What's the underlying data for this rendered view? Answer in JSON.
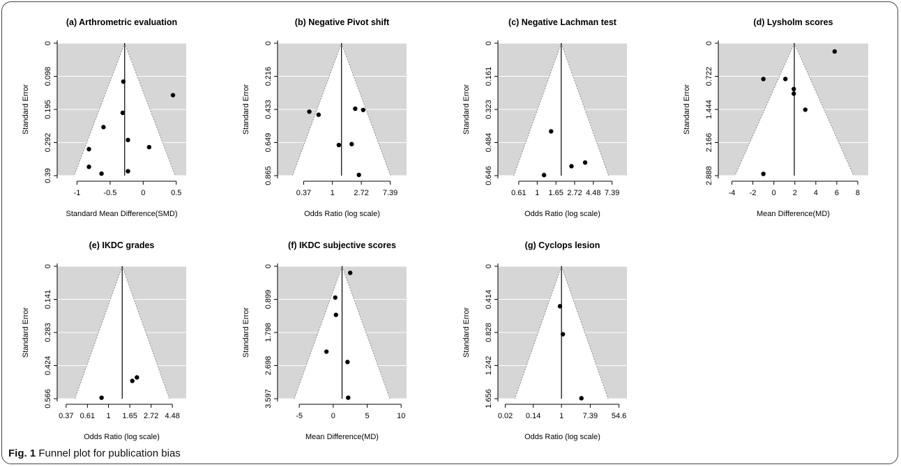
{
  "caption": {
    "label": "Fig. 1",
    "text": "Funnel plot for publication bias"
  },
  "chart_data": [
    {
      "type": "scatter",
      "subtype": "funnel",
      "scale": "linear",
      "title": "(a) Arthrometric evaluation",
      "xlabel": "Standard Mean Difference(SMD)",
      "ylabel": "Standard Error",
      "xlim": [
        -1.3,
        0.65
      ],
      "ylim": [
        0.39,
        0
      ],
      "xticks": [
        {
          "v": -1,
          "label": "-1"
        },
        {
          "v": -0.5,
          "label": "-0.5"
        },
        {
          "v": 0,
          "label": "0"
        },
        {
          "v": 0.5,
          "label": "0.5"
        }
      ],
      "yticks": [
        "0",
        "0.098",
        "0.195",
        "0.292",
        "0.39"
      ],
      "summary": -0.28,
      "max_se": 0.39,
      "points": [
        {
          "x": -0.3,
          "y": 0.113
        },
        {
          "x": 0.45,
          "y": 0.153
        },
        {
          "x": -0.31,
          "y": 0.205
        },
        {
          "x": -0.6,
          "y": 0.247
        },
        {
          "x": -0.23,
          "y": 0.285
        },
        {
          "x": 0.09,
          "y": 0.306
        },
        {
          "x": -0.82,
          "y": 0.312
        },
        {
          "x": -0.82,
          "y": 0.364
        },
        {
          "x": -0.23,
          "y": 0.377
        },
        {
          "x": -0.63,
          "y": 0.384
        }
      ]
    },
    {
      "type": "scatter",
      "subtype": "funnel",
      "scale": "log",
      "title": "(b) Negative Pivot shift",
      "xlabel": "Odds Ratio (log scale)",
      "ylabel": "Standard Error",
      "xlim": [
        0.15,
        13
      ],
      "ylim": [
        0.865,
        0
      ],
      "xticks": [
        {
          "v": 0.37,
          "label": "0.37"
        },
        {
          "v": 1,
          "label": "1"
        },
        {
          "v": 2.72,
          "label": "2.72"
        },
        {
          "v": 7.39,
          "label": "7.39"
        }
      ],
      "yticks": [
        "0",
        "0.216",
        "0.433",
        "0.649",
        "0.865"
      ],
      "summary": 1.37,
      "max_se": 0.865,
      "points": [
        {
          "x": 2.2,
          "y": 0.428
        },
        {
          "x": 2.9,
          "y": 0.436
        },
        {
          "x": 0.45,
          "y": 0.447
        },
        {
          "x": 0.62,
          "y": 0.467
        },
        {
          "x": 1.95,
          "y": 0.659
        },
        {
          "x": 1.25,
          "y": 0.665
        },
        {
          "x": 2.5,
          "y": 0.86
        }
      ]
    },
    {
      "type": "scatter",
      "subtype": "funnel",
      "scale": "log",
      "title": "(c) Negative Lachman test",
      "xlabel": "Odds Ratio (log scale)",
      "ylabel": "Standard Error",
      "xlim": [
        0.35,
        11
      ],
      "ylim": [
        0.646,
        0
      ],
      "xticks": [
        {
          "v": 0.61,
          "label": "0.61"
        },
        {
          "v": 1,
          "label": "1"
        },
        {
          "v": 1.65,
          "label": "1.65"
        },
        {
          "v": 2.72,
          "label": "2.72"
        },
        {
          "v": 4.48,
          "label": "4.48"
        },
        {
          "v": 7.39,
          "label": "7.39"
        }
      ],
      "yticks": [
        "0",
        "0.161",
        "0.323",
        "0.484",
        "0.646"
      ],
      "summary": 1.9,
      "max_se": 0.646,
      "points": [
        {
          "x": 1.45,
          "y": 0.43
        },
        {
          "x": 3.6,
          "y": 0.582
        },
        {
          "x": 2.5,
          "y": 0.6
        },
        {
          "x": 1.2,
          "y": 0.643
        }
      ]
    },
    {
      "type": "scatter",
      "subtype": "funnel",
      "scale": "linear",
      "title": "(d) Lysholm scores",
      "xlabel": "Mean Difference(MD)",
      "ylabel": "Standard Error",
      "xlim": [
        -5.3,
        9.0
      ],
      "ylim": [
        2.888,
        0
      ],
      "xticks": [
        {
          "v": -4,
          "label": "-4"
        },
        {
          "v": -2,
          "label": "-2"
        },
        {
          "v": 0,
          "label": "0"
        },
        {
          "v": 2,
          "label": "2"
        },
        {
          "v": 4,
          "label": "4"
        },
        {
          "v": 6,
          "label": "6"
        },
        {
          "v": 8,
          "label": "8"
        }
      ],
      "yticks": [
        "0",
        "0.722",
        "1.444",
        "2.166",
        "2.888"
      ],
      "summary": 1.95,
      "max_se": 2.888,
      "points": [
        {
          "x": 5.8,
          "y": 0.18
        },
        {
          "x": -1.0,
          "y": 0.78
        },
        {
          "x": 1.1,
          "y": 0.78
        },
        {
          "x": 1.9,
          "y": 1.0
        },
        {
          "x": 1.9,
          "y": 1.1
        },
        {
          "x": 3.0,
          "y": 1.45
        },
        {
          "x": -1.0,
          "y": 2.85
        }
      ]
    },
    {
      "type": "scatter",
      "subtype": "funnel",
      "scale": "log",
      "title": "(e) IKDC grades",
      "xlabel": "Odds Ratio (log scale)",
      "ylabel": "Standard Error",
      "xlim": [
        0.3,
        6.2
      ],
      "ylim": [
        0.566,
        0
      ],
      "xticks": [
        {
          "v": 0.37,
          "label": "0.37"
        },
        {
          "v": 0.61,
          "label": "0.61"
        },
        {
          "v": 1,
          "label": "1"
        },
        {
          "v": 1.65,
          "label": "1.65"
        },
        {
          "v": 2.72,
          "label": "2.72"
        },
        {
          "v": 4.48,
          "label": "4.48"
        }
      ],
      "yticks": [
        "0",
        "0.141",
        "0.283",
        "0.424",
        "0.566"
      ],
      "summary": 1.38,
      "max_se": 0.566,
      "points": [
        {
          "x": 1.95,
          "y": 0.475
        },
        {
          "x": 1.75,
          "y": 0.49
        },
        {
          "x": 0.85,
          "y": 0.562
        }
      ]
    },
    {
      "type": "scatter",
      "subtype": "funnel",
      "scale": "linear",
      "title": "(f) IKDC subjective scores",
      "xlabel": "Mean Difference(MD)",
      "ylabel": "Standard Error",
      "xlim": [
        -8.2,
        10.8
      ],
      "ylim": [
        3.597,
        0
      ],
      "xticks": [
        {
          "v": -5,
          "label": "-5"
        },
        {
          "v": 0,
          "label": "0"
        },
        {
          "v": 5,
          "label": "5"
        },
        {
          "v": 10,
          "label": "10"
        }
      ],
      "yticks": [
        "0",
        "0.899",
        "1.798",
        "2.698",
        "3.597"
      ],
      "summary": 1.3,
      "max_se": 3.597,
      "points": [
        {
          "x": 2.5,
          "y": 0.18
        },
        {
          "x": 0.3,
          "y": 0.85
        },
        {
          "x": 0.4,
          "y": 1.32
        },
        {
          "x": -1.0,
          "y": 2.32
        },
        {
          "x": 2.1,
          "y": 2.6
        },
        {
          "x": 2.2,
          "y": 3.57
        }
      ]
    },
    {
      "type": "scatter",
      "subtype": "funnel",
      "scale": "log",
      "title": "(g) Cyclops lesion",
      "xlabel": "Odds Ratio (log scale)",
      "ylabel": "Standard Error",
      "xlim": [
        0.012,
        95
      ],
      "ylim": [
        1.656,
        0
      ],
      "xticks": [
        {
          "v": 0.02,
          "label": "0.02"
        },
        {
          "v": 0.14,
          "label": "0.14"
        },
        {
          "v": 1,
          "label": "1"
        },
        {
          "v": 7.39,
          "label": "7.39"
        },
        {
          "v": 54.6,
          "label": "54.6"
        }
      ],
      "yticks": [
        "0",
        "0.414",
        "0.828",
        "1.242",
        "1.656"
      ],
      "summary": 1.0,
      "max_se": 1.656,
      "points": [
        {
          "x": 0.9,
          "y": 0.5
        },
        {
          "x": 1.1,
          "y": 0.85
        },
        {
          "x": 4.0,
          "y": 1.65
        }
      ]
    }
  ]
}
